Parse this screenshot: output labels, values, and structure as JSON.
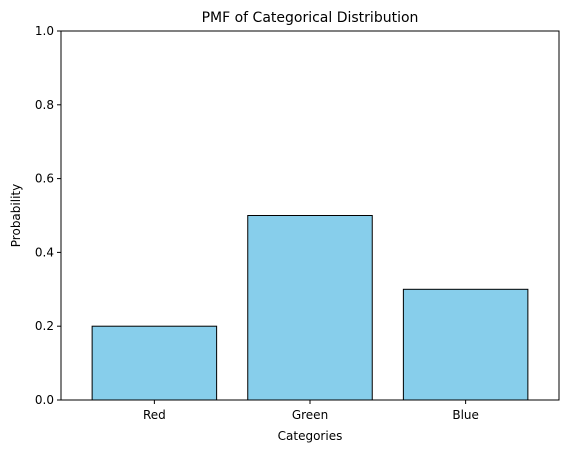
{
  "chart_data": {
    "type": "bar",
    "title": "PMF of Categorical Distribution",
    "xlabel": "Categories",
    "ylabel": "Probability",
    "categories": [
      "Red",
      "Green",
      "Blue"
    ],
    "values": [
      0.2,
      0.5,
      0.3
    ],
    "ylim": [
      0,
      1
    ],
    "yticks": [
      0.0,
      0.2,
      0.4,
      0.6,
      0.8,
      1.0
    ],
    "ytick_labels": [
      "0.0",
      "0.2",
      "0.4",
      "0.6",
      "0.8",
      "1.0"
    ],
    "grid": false,
    "legend": "none",
    "colors": {
      "bar_fill": "#87ceeb",
      "bar_edge": "#000000"
    }
  }
}
